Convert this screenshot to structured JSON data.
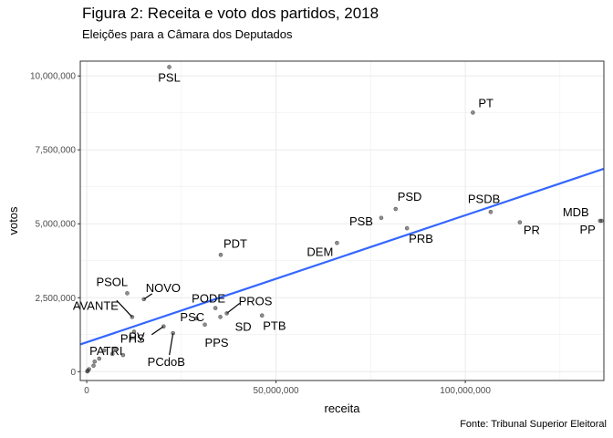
{
  "header": {
    "title": "Figura 2: Receita e voto dos partidos, 2018",
    "subtitle": "Eleições para a Câmara dos Deputados"
  },
  "caption": "Fonte: Tribunal Superior Eleitoral",
  "chart_data": {
    "type": "scatter",
    "title": "Figura 2: Receita e voto dos partidos, 2018",
    "subtitle": "Eleições para a Câmara dos Deputados",
    "xlabel": "receita",
    "ylabel": "votos",
    "xlim": [
      -1700000,
      136600000
    ],
    "ylim": [
      -300000,
      10500000
    ],
    "xticks": [
      0,
      50000000,
      100000000
    ],
    "xtick_labels": [
      "0",
      "50,000,000",
      "100,000,000"
    ],
    "yticks": [
      0,
      2500000,
      5000000,
      7500000,
      10000000
    ],
    "ytick_labels": [
      "0",
      "2,500,000",
      "5,000,000",
      "7,500,000",
      "10,000,000"
    ],
    "grid": true,
    "colors": {
      "points": "#333333",
      "trend": "#3366FF",
      "grid": "#ebebeb",
      "panel_border": "#333333"
    },
    "trend_line": {
      "method": "linear",
      "x": [
        -1700000,
        136600000
      ],
      "y": [
        920000,
        6860000
      ]
    },
    "points": [
      {
        "party": "PSL",
        "x": 21800000,
        "y": 10300000
      },
      {
        "party": "PT",
        "x": 102000000,
        "y": 8760000
      },
      {
        "party": "PSD",
        "x": 81600000,
        "y": 5500000
      },
      {
        "party": "PSDB",
        "x": 106700000,
        "y": 5400000
      },
      {
        "party": "PSB",
        "x": 77800000,
        "y": 5200000
      },
      {
        "party": "PRB",
        "x": 84600000,
        "y": 4850000
      },
      {
        "party": "PR",
        "x": 114400000,
        "y": 5050000
      },
      {
        "party": "MDB",
        "x": 135600000,
        "y": 5100000
      },
      {
        "party": "PP",
        "x": 136000000,
        "y": 5100000
      },
      {
        "party": "DEM",
        "x": 66100000,
        "y": 4350000
      },
      {
        "party": "PDT",
        "x": 35400000,
        "y": 3950000
      },
      {
        "party": "PSOL",
        "x": 10700000,
        "y": 2650000
      },
      {
        "party": "NOVO",
        "x": 15100000,
        "y": 2450000
      },
      {
        "party": "PODE",
        "x": 34000000,
        "y": 2150000
      },
      {
        "party": "PROS",
        "x": 37000000,
        "y": 1970000
      },
      {
        "party": "PTB",
        "x": 46300000,
        "y": 1900000
      },
      {
        "party": "PSC",
        "x": 29000000,
        "y": 1800000
      },
      {
        "party": "SD",
        "x": 35300000,
        "y": 1850000
      },
      {
        "party": "PPS",
        "x": 31200000,
        "y": 1590000
      },
      {
        "party": "AVANTE",
        "x": 12000000,
        "y": 1850000
      },
      {
        "party": "PHS",
        "x": 12500000,
        "y": 1350000
      },
      {
        "party": "PV",
        "x": 20300000,
        "y": 1530000
      },
      {
        "party": "PCdoB",
        "x": 22800000,
        "y": 1300000
      },
      {
        "party": "PATRI",
        "x": 7500000,
        "y": 780000
      },
      {
        "party": "",
        "x": 4600000,
        "y": 720000
      },
      {
        "party": "",
        "x": 6800000,
        "y": 600000
      },
      {
        "party": "",
        "x": 9600000,
        "y": 560000
      },
      {
        "party": "",
        "x": 2100000,
        "y": 340000
      },
      {
        "party": "",
        "x": 1800000,
        "y": 200000
      },
      {
        "party": "",
        "x": 3300000,
        "y": 440000
      },
      {
        "party": "",
        "x": 300000,
        "y": 30000
      },
      {
        "party": "",
        "x": 600000,
        "y": 80000
      },
      {
        "party": "",
        "x": 150000,
        "y": 10000
      }
    ]
  }
}
